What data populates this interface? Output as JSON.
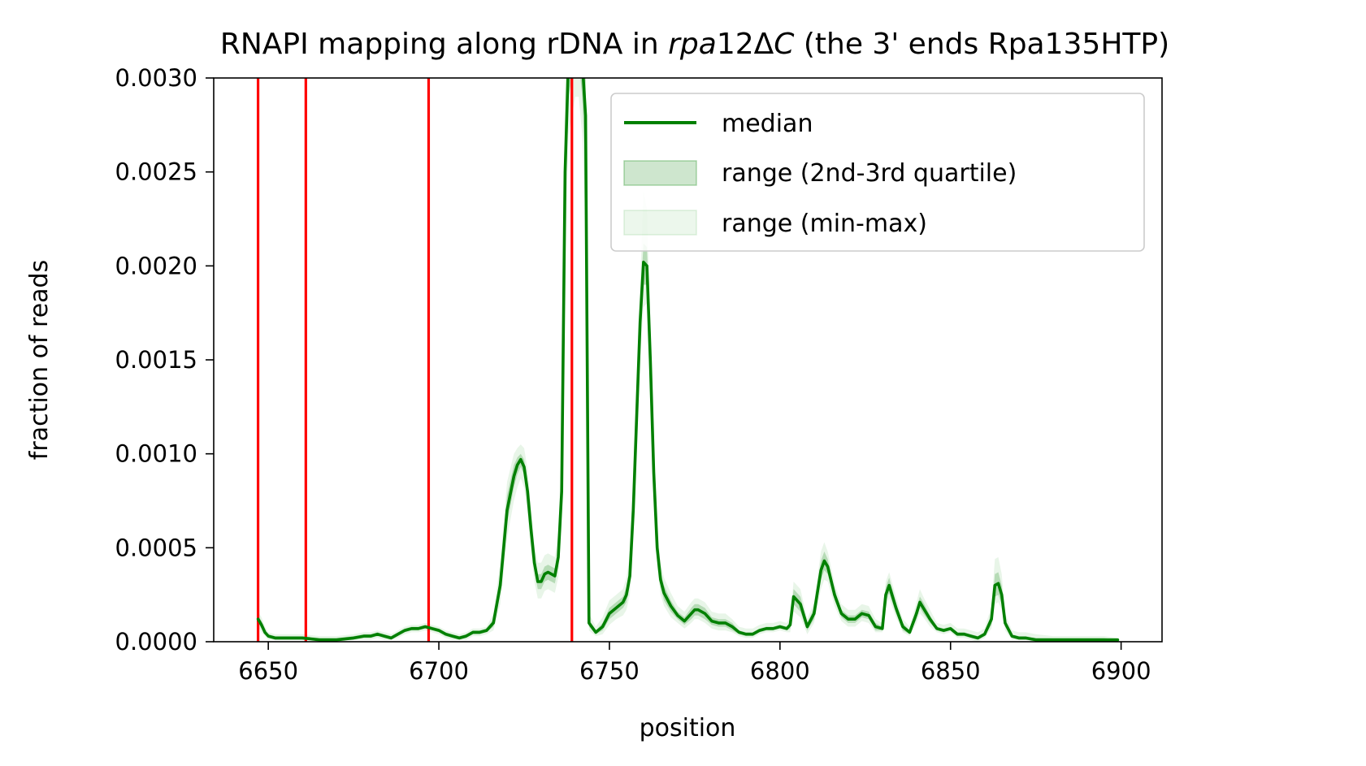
{
  "chart_data": {
    "type": "line",
    "title_parts": {
      "prefix": "RNAPI mapping along rDNA in ",
      "italic_1": "rpa",
      "middle": "12Δ",
      "italic_2": "C",
      "suffix": " (the 3' ends Rpa135HTP)"
    },
    "xlabel": "position",
    "ylabel": "fraction of reads",
    "xlim": [
      6634,
      6912
    ],
    "ylim": [
      0,
      0.003
    ],
    "xticks": [
      "6650",
      "6700",
      "6750",
      "6800",
      "6850",
      "6900"
    ],
    "yticks": [
      "0.0000",
      "0.0005",
      "0.0010",
      "0.0015",
      "0.0020",
      "0.0025",
      "0.0030"
    ],
    "grid": false,
    "legend_position": "upper right",
    "legend": [
      {
        "label": "median",
        "kind": "line"
      },
      {
        "label": "range (2nd-3rd quartile)",
        "kind": "band_dark"
      },
      {
        "label": "range (min-max)",
        "kind": "band_light"
      }
    ],
    "colors": {
      "median": "#008000",
      "band_dark": "#1f8f1f",
      "band_light": "#7fc97f",
      "vlines": "#ff0000"
    },
    "vlines_x": [
      6647,
      6661,
      6697,
      6739
    ],
    "series": [
      {
        "name": "median",
        "x": [
          6647,
          6648,
          6649,
          6650,
          6652,
          6655,
          6660,
          6665,
          6670,
          6675,
          6678,
          6680,
          6682,
          6684,
          6686,
          6688,
          6690,
          6692,
          6694,
          6696,
          6698,
          6700,
          6702,
          6704,
          6706,
          6708,
          6710,
          6712,
          6714,
          6716,
          6718,
          6720,
          6722,
          6723,
          6724,
          6725,
          6726,
          6727,
          6728,
          6729,
          6730,
          6731,
          6732,
          6733,
          6734,
          6735,
          6736,
          6737,
          6738,
          6739,
          6740,
          6741,
          6742,
          6743,
          6744,
          6746,
          6748,
          6750,
          6752,
          6754,
          6755,
          6756,
          6757,
          6758,
          6759,
          6760,
          6761,
          6762,
          6763,
          6764,
          6765,
          6766,
          6768,
          6770,
          6772,
          6774,
          6775,
          6776,
          6778,
          6780,
          6782,
          6784,
          6786,
          6788,
          6790,
          6792,
          6794,
          6796,
          6798,
          6800,
          6802,
          6803,
          6804,
          6806,
          6808,
          6810,
          6812,
          6813,
          6814,
          6816,
          6818,
          6820,
          6822,
          6824,
          6826,
          6828,
          6830,
          6831,
          6832,
          6834,
          6836,
          6838,
          6840,
          6841,
          6842,
          6844,
          6846,
          6848,
          6850,
          6852,
          6854,
          6856,
          6858,
          6860,
          6862,
          6863,
          6864,
          6865,
          6866,
          6868,
          6870,
          6872,
          6875,
          6880,
          6885,
          6890,
          6895,
          6899
        ],
        "median": [
          0.00012,
          9e-05,
          5e-05,
          3e-05,
          2e-05,
          2e-05,
          2e-05,
          1e-05,
          1e-05,
          2e-05,
          3e-05,
          3e-05,
          4e-05,
          3e-05,
          2e-05,
          4e-05,
          6e-05,
          7e-05,
          7e-05,
          8e-05,
          7e-05,
          6e-05,
          4e-05,
          3e-05,
          2e-05,
          3e-05,
          5e-05,
          5e-05,
          6e-05,
          0.0001,
          0.0003,
          0.0007,
          0.00088,
          0.00094,
          0.00097,
          0.00093,
          0.0008,
          0.0006,
          0.00042,
          0.00032,
          0.00032,
          0.00036,
          0.00037,
          0.00036,
          0.00035,
          0.00045,
          0.0008,
          0.0025,
          0.0031,
          0.0032,
          0.0033,
          0.0033,
          0.0031,
          0.0028,
          0.0001,
          5e-05,
          8e-05,
          0.00015,
          0.00018,
          0.00021,
          0.00025,
          0.00035,
          0.0007,
          0.0012,
          0.0017,
          0.00202,
          0.002,
          0.0015,
          0.0009,
          0.0005,
          0.00033,
          0.00026,
          0.00019,
          0.00014,
          0.00011,
          0.00015,
          0.00017,
          0.00017,
          0.00015,
          0.00011,
          0.0001,
          0.0001,
          8e-05,
          5e-05,
          4e-05,
          4e-05,
          6e-05,
          7e-05,
          7e-05,
          8e-05,
          7e-05,
          9e-05,
          0.00024,
          0.0002,
          8e-05,
          0.00015,
          0.00038,
          0.00043,
          0.0004,
          0.00025,
          0.00015,
          0.00012,
          0.00012,
          0.00015,
          0.00014,
          8e-05,
          7e-05,
          0.00025,
          0.0003,
          0.00018,
          8e-05,
          5e-05,
          0.00015,
          0.00021,
          0.00018,
          0.00012,
          7e-05,
          6e-05,
          7e-05,
          4e-05,
          4e-05,
          3e-05,
          2e-05,
          4e-05,
          0.00012,
          0.0003,
          0.00031,
          0.00025,
          0.0001,
          3e-05,
          2e-05,
          2e-05,
          1e-05,
          1e-05,
          1e-05,
          1e-05,
          1e-05,
          1e-05
        ],
        "q_low": [
          0.0001,
          7e-05,
          4e-05,
          2e-05,
          1e-05,
          1e-05,
          1e-05,
          1e-05,
          1e-05,
          1e-05,
          2e-05,
          2e-05,
          3e-05,
          2e-05,
          1e-05,
          3e-05,
          5e-05,
          6e-05,
          6e-05,
          7e-05,
          6e-05,
          5e-05,
          3e-05,
          2e-05,
          1e-05,
          2e-05,
          4e-05,
          4e-05,
          5e-05,
          8e-05,
          0.00026,
          0.00063,
          0.00082,
          0.00089,
          0.00093,
          0.00089,
          0.00075,
          0.00055,
          0.00038,
          0.00028,
          0.00028,
          0.00032,
          0.00033,
          0.00032,
          0.00031,
          0.0004,
          0.00072,
          0.0023,
          0.0029,
          0.003,
          0.0031,
          0.0031,
          0.0029,
          0.0025,
          8e-05,
          4e-05,
          6e-05,
          0.00012,
          0.00015,
          0.00018,
          0.00021,
          0.0003,
          0.00062,
          0.0011,
          0.0016,
          0.0019,
          0.0019,
          0.0014,
          0.00082,
          0.00045,
          0.00029,
          0.00022,
          0.00016,
          0.00012,
          9e-05,
          0.00012,
          0.00014,
          0.00014,
          0.00012,
          9e-05,
          8e-05,
          8e-05,
          6e-05,
          4e-05,
          3e-05,
          3e-05,
          5e-05,
          6e-05,
          6e-05,
          7e-05,
          6e-05,
          7e-05,
          0.0002,
          0.00016,
          6e-05,
          0.00012,
          0.00033,
          0.00038,
          0.00036,
          0.00022,
          0.00013,
          0.0001,
          0.0001,
          0.00013,
          0.00012,
          6e-05,
          6e-05,
          0.00021,
          0.00026,
          0.00015,
          6e-05,
          4e-05,
          0.00012,
          0.00018,
          0.00015,
          0.0001,
          6e-05,
          5e-05,
          6e-05,
          3e-05,
          3e-05,
          2e-05,
          1e-05,
          3e-05,
          9e-05,
          0.00024,
          0.00025,
          0.0002,
          8e-05,
          2e-05,
          1e-05,
          1e-05,
          1e-05,
          1e-05,
          1e-05,
          1e-05,
          1e-05,
          1e-05
        ],
        "q_high": [
          0.00014,
          0.00011,
          6e-05,
          4e-05,
          3e-05,
          3e-05,
          3e-05,
          2e-05,
          2e-05,
          3e-05,
          4e-05,
          4e-05,
          5e-05,
          4e-05,
          3e-05,
          5e-05,
          7e-05,
          8e-05,
          8e-05,
          9e-05,
          8e-05,
          7e-05,
          5e-05,
          4e-05,
          3e-05,
          4e-05,
          6e-05,
          6e-05,
          7e-05,
          0.00012,
          0.00036,
          0.00078,
          0.00094,
          0.00098,
          0.001,
          0.00097,
          0.00085,
          0.00065,
          0.00046,
          0.00036,
          0.00036,
          0.0004,
          0.00041,
          0.0004,
          0.00039,
          0.0005,
          0.00088,
          0.0027,
          0.0033,
          0.0034,
          0.0035,
          0.0035,
          0.0033,
          0.003,
          0.00012,
          6e-05,
          0.0001,
          0.00018,
          0.00021,
          0.00024,
          0.00029,
          0.0004,
          0.00078,
          0.0013,
          0.0018,
          0.00212,
          0.0021,
          0.0016,
          0.00098,
          0.00055,
          0.00037,
          0.0003,
          0.00022,
          0.00016,
          0.00013,
          0.00018,
          0.0002,
          0.0002,
          0.00018,
          0.00013,
          0.00012,
          0.00012,
          0.0001,
          6e-05,
          5e-05,
          5e-05,
          7e-05,
          8e-05,
          8e-05,
          9e-05,
          8e-05,
          0.00011,
          0.00028,
          0.00024,
          0.0001,
          0.00018,
          0.00043,
          0.00048,
          0.00044,
          0.00028,
          0.00017,
          0.00014,
          0.00014,
          0.00017,
          0.00016,
          0.0001,
          8e-05,
          0.00029,
          0.00034,
          0.00021,
          0.0001,
          6e-05,
          0.00018,
          0.00024,
          0.00021,
          0.00014,
          8e-05,
          7e-05,
          8e-05,
          5e-05,
          5e-05,
          4e-05,
          3e-05,
          5e-05,
          0.00015,
          0.00036,
          0.00037,
          0.0003,
          0.00012,
          4e-05,
          3e-05,
          3e-05,
          2e-05,
          2e-05,
          2e-05,
          2e-05,
          2e-05,
          1e-05
        ],
        "min": [
          8e-05,
          5e-05,
          3e-05,
          1e-05,
          1e-05,
          1e-05,
          1e-05,
          0,
          0,
          1e-05,
          1e-05,
          1e-05,
          2e-05,
          1e-05,
          1e-05,
          2e-05,
          4e-05,
          5e-05,
          5e-05,
          6e-05,
          5e-05,
          4e-05,
          2e-05,
          1e-05,
          1e-05,
          1e-05,
          3e-05,
          3e-05,
          4e-05,
          6e-05,
          0.0002,
          0.00055,
          0.00075,
          0.00082,
          0.00087,
          0.00082,
          0.00068,
          0.00048,
          0.00032,
          0.00023,
          0.00023,
          0.00027,
          0.00028,
          0.00027,
          0.00026,
          0.00034,
          0.00062,
          0.002,
          0.0027,
          0.0028,
          0.0029,
          0.0029,
          0.0027,
          0.0022,
          6e-05,
          3e-05,
          4e-05,
          9e-05,
          0.00012,
          0.00014,
          0.00017,
          0.00025,
          0.00054,
          0.001,
          0.0015,
          0.00178,
          0.0018,
          0.0013,
          0.00074,
          0.0004,
          0.00025,
          0.00019,
          0.00013,
          0.0001,
          7e-05,
          0.0001,
          0.00012,
          0.00012,
          0.0001,
          7e-05,
          6e-05,
          6e-05,
          5e-05,
          3e-05,
          2e-05,
          2e-05,
          4e-05,
          5e-05,
          5e-05,
          6e-05,
          5e-05,
          5e-05,
          0.00016,
          0.00013,
          4e-05,
          0.0001,
          0.00028,
          0.00033,
          0.00032,
          0.00019,
          0.00011,
          8e-05,
          8e-05,
          0.00011,
          0.0001,
          5e-05,
          5e-05,
          0.00018,
          0.00023,
          0.00013,
          5e-05,
          3e-05,
          0.0001,
          0.00015,
          0.00013,
          8e-05,
          5e-05,
          4e-05,
          5e-05,
          2e-05,
          2e-05,
          1e-05,
          0,
          2e-05,
          7e-05,
          0.0002,
          0.00021,
          0.00017,
          6e-05,
          1e-05,
          1e-05,
          1e-05,
          0,
          0,
          0,
          0,
          0,
          0
        ],
        "max": [
          0.00016,
          0.00013,
          8e-05,
          5e-05,
          4e-05,
          4e-05,
          4e-05,
          3e-05,
          3e-05,
          4e-05,
          5e-05,
          5e-05,
          6e-05,
          5e-05,
          4e-05,
          6e-05,
          8e-05,
          9e-05,
          9e-05,
          0.0001,
          9e-05,
          8e-05,
          6e-05,
          5e-05,
          4e-05,
          5e-05,
          7e-05,
          7e-05,
          8e-05,
          0.00015,
          0.00042,
          0.00085,
          0.001,
          0.00103,
          0.00105,
          0.00103,
          0.00092,
          0.00072,
          0.00052,
          0.00042,
          0.00042,
          0.00046,
          0.00047,
          0.00046,
          0.00045,
          0.00058,
          0.001,
          0.003,
          0.0035,
          0.0036,
          0.0037,
          0.0037,
          0.0035,
          0.0032,
          0.00015,
          8e-05,
          0.00013,
          0.00022,
          0.00025,
          0.00028,
          0.00034,
          0.00046,
          0.00088,
          0.0014,
          0.0019,
          0.0024,
          0.0023,
          0.0017,
          0.00108,
          0.00062,
          0.00042,
          0.00034,
          0.00026,
          0.00019,
          0.00016,
          0.00021,
          0.00023,
          0.00023,
          0.00021,
          0.00016,
          0.00015,
          0.00015,
          0.00012,
          8e-05,
          7e-05,
          7e-05,
          9e-05,
          0.0001,
          0.0001,
          0.00011,
          0.0001,
          0.00013,
          0.00032,
          0.00028,
          0.00012,
          0.00021,
          0.00048,
          0.00053,
          0.00048,
          0.00031,
          0.0002,
          0.00017,
          0.00017,
          0.0002,
          0.00019,
          0.00012,
          0.0001,
          0.00032,
          0.00037,
          0.00024,
          0.00012,
          8e-05,
          0.00021,
          0.00028,
          0.00024,
          0.00017,
          0.0001,
          9e-05,
          0.0001,
          7e-05,
          7e-05,
          6e-05,
          5e-05,
          7e-05,
          0.00019,
          0.00044,
          0.00045,
          0.00036,
          0.00015,
          6e-05,
          5e-05,
          5e-05,
          4e-05,
          3e-05,
          3e-05,
          3e-05,
          3e-05,
          2e-05
        ]
      }
    ]
  }
}
